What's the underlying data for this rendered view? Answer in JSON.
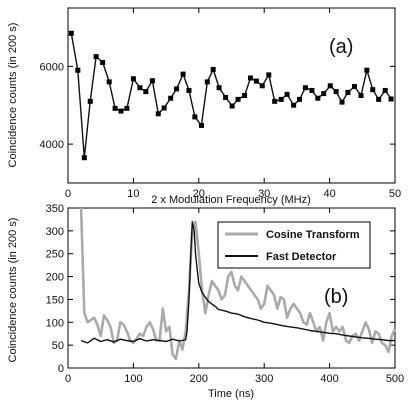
{
  "chart_data": [
    {
      "panel": "(a)",
      "type": "line",
      "markers": "square",
      "xlabel": "2 x Modulation Frequency (MHz)",
      "ylabel": "Coincidence counts (in 200 s)",
      "xlim": [
        0,
        50
      ],
      "ylim": [
        3000,
        7500
      ],
      "xticks": [
        0,
        10,
        20,
        30,
        40,
        50
      ],
      "yticks": [
        4000,
        6000
      ],
      "grid": false,
      "series": [
        {
          "color": "#111111",
          "x": [
            0.5,
            1.5,
            2.5,
            3.4,
            4.3,
            5.3,
            6.3,
            7.2,
            8.1,
            9.0,
            10.0,
            11.0,
            11.9,
            12.9,
            13.8,
            14.7,
            15.7,
            16.6,
            17.6,
            18.5,
            19.4,
            20.4,
            21.3,
            22.2,
            23.1,
            24.1,
            25.1,
            26.0,
            27.0,
            27.9,
            28.8,
            29.7,
            30.7,
            31.6,
            32.6,
            33.5,
            34.5,
            35.4,
            36.3,
            37.3,
            38.2,
            39.1,
            40.1,
            41.0,
            41.9,
            42.8,
            43.8,
            44.8,
            45.7,
            46.6,
            47.5,
            48.5,
            49.4
          ],
          "y": [
            6850,
            5900,
            3650,
            5100,
            6250,
            6100,
            5600,
            4920,
            4850,
            4920,
            5680,
            5450,
            5350,
            5630,
            4780,
            4930,
            5180,
            5420,
            5800,
            5380,
            4700,
            4480,
            5600,
            5920,
            5450,
            5200,
            4980,
            5150,
            5250,
            5700,
            5620,
            5500,
            5780,
            5100,
            5150,
            5280,
            5000,
            5150,
            5450,
            5380,
            5180,
            5300,
            5500,
            5350,
            5080,
            5330,
            5480,
            5250,
            5900,
            5400,
            5150,
            5380,
            5160
          ]
        }
      ]
    },
    {
      "panel": "(b)",
      "type": "line",
      "xlabel": "Time (ns)",
      "ylabel": "Coincidence counts (in 200 s)",
      "xlim": [
        0,
        500
      ],
      "ylim": [
        0,
        350
      ],
      "xticks": [
        0,
        100,
        200,
        300,
        400,
        500
      ],
      "yticks": [
        0,
        50,
        100,
        150,
        200,
        250,
        300,
        350
      ],
      "grid": false,
      "legend_position": "top-right",
      "series": [
        {
          "name": "Cosine Transform",
          "color": "#a9aba9",
          "x": [
            20,
            25,
            30,
            35,
            40,
            45,
            50,
            55,
            60,
            65,
            70,
            75,
            80,
            85,
            90,
            95,
            100,
            105,
            110,
            115,
            120,
            125,
            130,
            135,
            140,
            145,
            150,
            155,
            160,
            165,
            170,
            175,
            180,
            185,
            190,
            195,
            200,
            205,
            210,
            215,
            220,
            225,
            230,
            235,
            240,
            245,
            250,
            255,
            260,
            265,
            270,
            275,
            280,
            285,
            290,
            295,
            300,
            305,
            310,
            315,
            320,
            325,
            330,
            335,
            340,
            345,
            350,
            355,
            360,
            365,
            370,
            375,
            380,
            385,
            390,
            395,
            400,
            405,
            410,
            415,
            420,
            425,
            430,
            435,
            440,
            445,
            450,
            455,
            460,
            465,
            470,
            475,
            480,
            485,
            490,
            495,
            500
          ],
          "y": [
            350,
            120,
            100,
            105,
            110,
            95,
            70,
            115,
            105,
            90,
            55,
            60,
            100,
            95,
            80,
            60,
            55,
            65,
            75,
            70,
            90,
            100,
            85,
            60,
            60,
            130,
            80,
            90,
            30,
            20,
            60,
            40,
            80,
            170,
            300,
            320,
            250,
            170,
            120,
            160,
            190,
            180,
            170,
            150,
            160,
            200,
            210,
            180,
            170,
            200,
            190,
            180,
            170,
            160,
            150,
            130,
            140,
            180,
            170,
            160,
            130,
            155,
            150,
            110,
            130,
            140,
            130,
            120,
            100,
            95,
            120,
            100,
            80,
            90,
            60,
            100,
            120,
            80,
            90,
            80,
            90,
            60,
            55,
            70,
            75,
            60,
            80,
            100,
            85,
            55,
            80,
            75,
            55,
            50,
            35,
            70,
            85
          ]
        },
        {
          "name": "Fast Detector",
          "color": "#111111",
          "x": [
            20,
            30,
            40,
            50,
            60,
            70,
            80,
            90,
            100,
            110,
            120,
            130,
            140,
            150,
            160,
            170,
            180,
            182,
            185,
            188,
            190,
            193,
            195,
            198,
            200,
            205,
            210,
            215,
            220,
            225,
            230,
            240,
            250,
            260,
            270,
            280,
            290,
            300,
            310,
            320,
            330,
            340,
            350,
            360,
            370,
            380,
            390,
            400,
            410,
            420,
            430,
            440,
            450,
            460,
            470,
            480,
            490,
            500
          ],
          "y": [
            60,
            55,
            65,
            58,
            62,
            57,
            63,
            60,
            58,
            64,
            59,
            62,
            60,
            58,
            63,
            59,
            62,
            80,
            150,
            260,
            320,
            300,
            250,
            210,
            185,
            165,
            155,
            145,
            140,
            135,
            128,
            125,
            120,
            118,
            112,
            108,
            105,
            100,
            98,
            95,
            92,
            90,
            88,
            85,
            82,
            80,
            78,
            76,
            75,
            72,
            70,
            68,
            66,
            65,
            63,
            62,
            60,
            60
          ]
        }
      ]
    }
  ]
}
